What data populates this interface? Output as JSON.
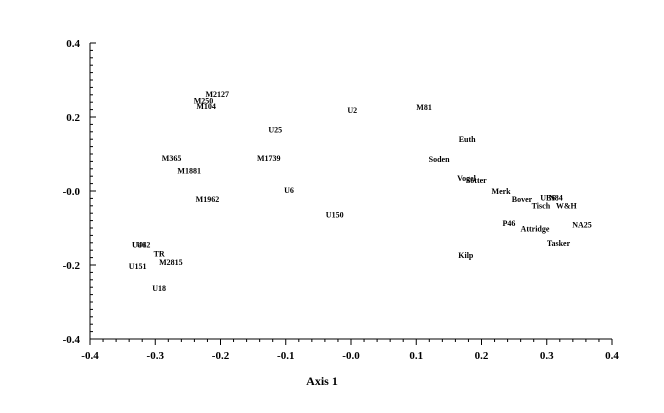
{
  "chart_data": {
    "type": "scatter",
    "title": "",
    "xlabel": "Axis 1",
    "ylabel": "",
    "xlim": [
      -0.4,
      0.4
    ],
    "ylim": [
      -0.4,
      0.4
    ],
    "x_ticks": [
      "-0.4",
      "-0.3",
      "-0.2",
      "-0.1",
      "-0.0",
      "0.1",
      "0.2",
      "0.3",
      "0.4"
    ],
    "y_ticks": [
      "0.4",
      "0.2",
      "-0.0",
      "-0.2",
      "-0.4"
    ],
    "x_tick_values": [
      -0.4,
      -0.3,
      -0.2,
      -0.1,
      0.0,
      0.1,
      0.2,
      0.3,
      0.4
    ],
    "y_tick_values": [
      0.4,
      0.2,
      0.0,
      -0.2,
      -0.4
    ],
    "grid": false,
    "marker": "none",
    "points": [
      {
        "label": "M2127",
        "x": -0.205,
        "y": 0.262
      },
      {
        "label": "M250",
        "x": -0.226,
        "y": 0.245
      },
      {
        "label": "M104",
        "x": -0.222,
        "y": 0.23
      },
      {
        "label": "U2",
        "x": 0.002,
        "y": 0.219
      },
      {
        "label": "M81",
        "x": 0.112,
        "y": 0.227
      },
      {
        "label": "U25",
        "x": -0.116,
        "y": 0.166
      },
      {
        "label": "Euth",
        "x": 0.178,
        "y": 0.14
      },
      {
        "label": "M365",
        "x": -0.275,
        "y": 0.089
      },
      {
        "label": "M1739",
        "x": -0.126,
        "y": 0.089
      },
      {
        "label": "Soden",
        "x": 0.135,
        "y": 0.087
      },
      {
        "label": "M1881",
        "x": -0.248,
        "y": 0.055
      },
      {
        "label": "Vogel",
        "x": 0.177,
        "y": 0.035
      },
      {
        "label": "Sotter",
        "x": 0.192,
        "y": 0.03
      },
      {
        "label": "U6",
        "x": -0.095,
        "y": 0.003
      },
      {
        "label": "Merk",
        "x": 0.23,
        "y": 0.0
      },
      {
        "label": "UBS",
        "x": 0.302,
        "y": -0.017
      },
      {
        "label": "N84",
        "x": 0.314,
        "y": -0.017
      },
      {
        "label": "Bover",
        "x": 0.262,
        "y": -0.021
      },
      {
        "label": "M1962",
        "x": -0.22,
        "y": -0.021
      },
      {
        "label": "Tisch",
        "x": 0.291,
        "y": -0.039
      },
      {
        "label": "W&H",
        "x": 0.33,
        "y": -0.039
      },
      {
        "label": "U150",
        "x": -0.025,
        "y": -0.063
      },
      {
        "label": "P46",
        "x": 0.242,
        "y": -0.086
      },
      {
        "label": "NA25",
        "x": 0.354,
        "y": -0.091
      },
      {
        "label": "Attridge",
        "x": 0.282,
        "y": -0.102
      },
      {
        "label": "Tasker",
        "x": 0.318,
        "y": -0.141
      },
      {
        "label": "U46",
        "x": -0.325,
        "y": -0.145
      },
      {
        "label": "U42",
        "x": -0.318,
        "y": -0.145
      },
      {
        "label": "TR",
        "x": -0.294,
        "y": -0.169
      },
      {
        "label": "Kilp",
        "x": 0.176,
        "y": -0.173
      },
      {
        "label": "M2815",
        "x": -0.276,
        "y": -0.192
      },
      {
        "label": "U151",
        "x": -0.327,
        "y": -0.203
      },
      {
        "label": "U18",
        "x": -0.294,
        "y": -0.262
      }
    ]
  }
}
